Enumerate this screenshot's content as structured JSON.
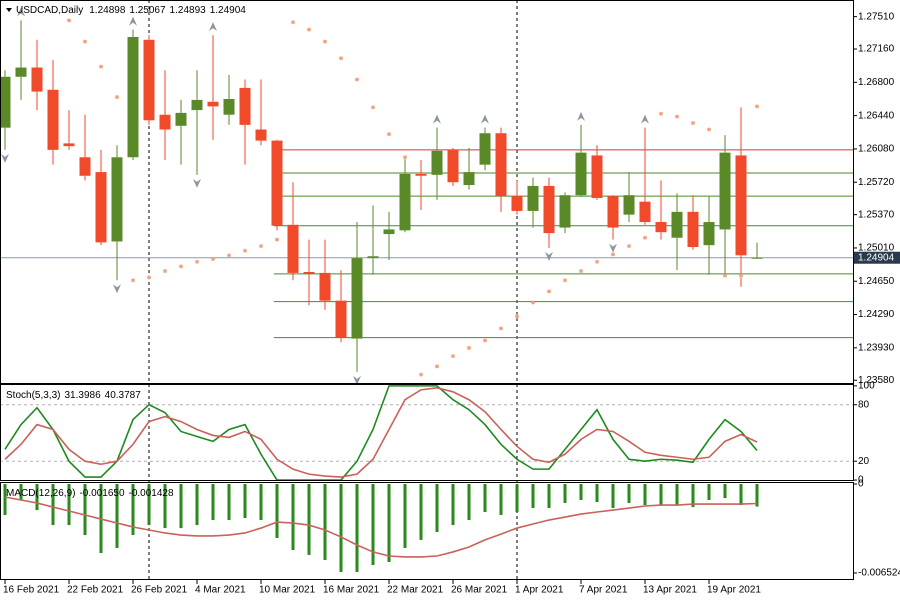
{
  "chart_data": [
    {
      "type": "candlestick",
      "title": "USDCAD,Daily",
      "categories": [
        "16 Feb 2021",
        null,
        null,
        null,
        "22 Feb 2021",
        null,
        null,
        null,
        "26 Feb 2021",
        null,
        null,
        null,
        "4 Mar 2021",
        null,
        null,
        null,
        "10 Mar 2021",
        null,
        null,
        null,
        "16 Mar 2021",
        null,
        null,
        null,
        "22 Mar 2021",
        null,
        null,
        null,
        "26 Mar 2021",
        null,
        null,
        null,
        "1 Apr 2021",
        null,
        null,
        null,
        "7 Apr 2021",
        null,
        null,
        null,
        "13 Apr 2021",
        null,
        null,
        null,
        "19 Apr 2021",
        null,
        null,
        null
      ],
      "open": [
        1.2631,
        1.2686,
        1.2696,
        1.2672,
        1.2614,
        1.2599,
        1.2583,
        1.2508,
        1.2599,
        1.2726,
        1.2645,
        1.2633,
        1.265,
        1.2659,
        1.2645,
        1.2674,
        1.2629,
        1.2617,
        1.2526,
        1.2475,
        1.2474,
        1.2444,
        1.2403,
        1.249,
        1.2516,
        1.252,
        1.2581,
        1.258,
        1.2607,
        1.2569,
        1.2591,
        1.2625,
        1.2557,
        1.2541,
        1.2568,
        1.2523,
        1.2558,
        1.2601,
        1.2557,
        1.2537,
        1.2551,
        1.2529,
        1.2512,
        1.254,
        1.2504,
        1.2521,
        1.2601,
        1.24898
      ],
      "high": [
        1.2693,
        1.2747,
        1.2726,
        1.2704,
        1.265,
        1.2645,
        1.2607,
        1.2612,
        1.2737,
        1.2731,
        1.2693,
        1.2661,
        1.2693,
        1.2731,
        1.2688,
        1.2683,
        1.2683,
        1.2618,
        1.2572,
        1.251,
        1.251,
        1.2477,
        1.2529,
        1.2547,
        1.254,
        1.2598,
        1.2596,
        1.2631,
        1.2609,
        1.2609,
        1.2631,
        1.2631,
        1.2574,
        1.2577,
        1.2577,
        1.2561,
        1.2634,
        1.2612,
        1.2558,
        1.2583,
        1.2631,
        1.2574,
        1.256,
        1.2558,
        1.2557,
        1.2623,
        1.2653,
        1.25067
      ],
      "low": [
        1.2607,
        1.2661,
        1.265,
        1.2591,
        1.2607,
        1.2574,
        1.2504,
        1.2466,
        1.2596,
        1.2634,
        1.2596,
        1.2591,
        1.258,
        1.2618,
        1.2634,
        1.2591,
        1.2612,
        1.252,
        1.2466,
        1.2439,
        1.2434,
        1.2399,
        1.2367,
        1.2472,
        1.2488,
        1.2518,
        1.2542,
        1.2553,
        1.2568,
        1.2564,
        1.2585,
        1.254,
        1.2537,
        1.2523,
        1.2501,
        1.2517,
        1.2556,
        1.2553,
        1.251,
        1.2529,
        1.2526,
        1.251,
        1.2477,
        1.2499,
        1.2472,
        1.2469,
        1.2459,
        1.24893
      ],
      "close": [
        1.2686,
        1.2696,
        1.267,
        1.2607,
        1.2611,
        1.2579,
        1.2507,
        1.2599,
        1.2729,
        1.2639,
        1.2629,
        1.2647,
        1.2661,
        1.2654,
        1.2662,
        1.2634,
        1.2617,
        1.2525,
        1.2474,
        1.2473,
        1.2444,
        1.2404,
        1.249,
        1.2492,
        1.2521,
        1.2581,
        1.2579,
        1.2606,
        1.2572,
        1.2583,
        1.2625,
        1.2557,
        1.2541,
        1.2568,
        1.2517,
        1.2558,
        1.2604,
        1.2555,
        1.2523,
        1.2558,
        1.2529,
        1.2518,
        1.254,
        1.2502,
        1.2529,
        1.2604,
        1.2493,
        1.24904
      ],
      "up_color": "#5a8a28",
      "down_color": "#f04a2a",
      "sar": {
        "color": "#f4a07a",
        "values": [
          null,
          null,
          null,
          null,
          1.2747,
          1.2724,
          1.2697,
          1.2664,
          1.2466,
          1.2469,
          1.2476,
          1.2481,
          1.2486,
          1.2489,
          1.2493,
          1.2498,
          1.2503,
          1.251,
          1.2745,
          1.2737,
          1.2724,
          1.2706,
          1.2683,
          1.2653,
          1.2624,
          1.2599,
          1.2364,
          1.2373,
          1.2384,
          1.2393,
          1.2401,
          1.2414,
          1.2427,
          1.2442,
          1.2454,
          1.2466,
          1.2476,
          1.2486,
          1.2494,
          1.2503,
          1.2512,
          1.2646,
          1.2643,
          1.2636,
          1.2629,
          1.2471,
          1.2471,
          1.2654
        ]
      },
      "fractals": {
        "color": "#8c96a0",
        "up": [
          1,
          8,
          13,
          27,
          30,
          36,
          40
        ],
        "down": [
          0,
          7,
          12,
          22,
          34,
          38
        ]
      },
      "levels": [
        {
          "value": 1.2607,
          "color": "#d03a30"
        },
        {
          "value": 1.2582,
          "color": "#4a8a2a"
        },
        {
          "value": 1.2557,
          "color": "#4a8a2a"
        },
        {
          "value": 1.2525,
          "color": "#4a8a2a"
        },
        {
          "value": 1.2473,
          "color": "#4a8a2a"
        },
        {
          "value": 1.2443,
          "color": "#4a8a2a"
        },
        {
          "value": 1.2404,
          "color": "#4a8a2a"
        }
      ],
      "period_separators": [
        9,
        32
      ],
      "ylim": [
        1.2355,
        1.2769
      ],
      "yticks": [
        {
          "value": 1.2751,
          "label": "1.27510"
        },
        {
          "value": 1.2716,
          "label": "1.27160"
        },
        {
          "value": 1.268,
          "label": "1.26800"
        },
        {
          "value": 1.2644,
          "label": "1.26440"
        },
        {
          "value": 1.2608,
          "label": "1.26080"
        },
        {
          "value": 1.2572,
          "label": "1.25720"
        },
        {
          "value": 1.2537,
          "label": "1.25370"
        },
        {
          "value": 1.2501,
          "label": "1.25010"
        },
        {
          "value": 1.2465,
          "label": "1.24650"
        },
        {
          "value": 1.2429,
          "label": "1.24290"
        },
        {
          "value": 1.2393,
          "label": "1.23930"
        },
        {
          "value": 1.2358,
          "label": "1.23580"
        }
      ]
    },
    {
      "type": "line",
      "title": "Stoch(5,3,3)",
      "series": [
        {
          "color": "#1e8a1e",
          "values": [
            32.6,
            58.9,
            76.8,
            53.7,
            20,
            3.2,
            3.2,
            20,
            64.2,
            80,
            71.6,
            51.6,
            46.3,
            41.1,
            53.7,
            58.9,
            27.4,
            0,
            0,
            0,
            0,
            0,
            20,
            53.7,
            100,
            100,
            100,
            100,
            85.3,
            74.7,
            58.9,
            37.9,
            22.1,
            11.6,
            11.6,
            32.6,
            53.7,
            74.7,
            43.2,
            22.1,
            20,
            22.1,
            21.1,
            18.9,
            43.2,
            64.2,
            51.6,
            31.3986
          ]
        },
        {
          "color": "#c8625a",
          "values": [
            22.1,
            37.9,
            58.9,
            53.7,
            32.6,
            20,
            16.8,
            20,
            37.9,
            62.1,
            67.4,
            62.1,
            53.7,
            47.4,
            45.3,
            51.6,
            43.2,
            22.1,
            11.6,
            6.3,
            4.2,
            3.2,
            6.3,
            22.1,
            53.7,
            85.3,
            95.8,
            97.9,
            93.7,
            85.3,
            72.6,
            53.7,
            35.8,
            22.1,
            18.9,
            27.4,
            43.2,
            53.7,
            51.6,
            41.1,
            29.5,
            26.3,
            24.2,
            22.1,
            24.2,
            41.1,
            48.4,
            40.3787
          ]
        }
      ],
      "levels": [
        20,
        80
      ],
      "ylim": [
        -1,
        102
      ],
      "yticks": [
        0,
        20,
        80,
        100
      ]
    },
    {
      "type": "macd",
      "title": "MACD(12,26,9)",
      "series": [
        {
          "color": "#2a8a1e",
          "current_label": "-0.001650",
          "values": [
            -0.00227,
            -0.00117,
            -0.00191,
            -0.00301,
            -0.00301,
            -0.00374,
            -0.00506,
            -0.00469,
            -0.00374,
            -0.00301,
            -0.00323,
            -0.00323,
            -0.00301,
            -0.00264,
            -0.00264,
            -0.00249,
            -0.00264,
            -0.00396,
            -0.00484,
            -0.0052,
            -0.00557,
            -0.00645,
            -0.00645,
            -0.00594,
            -0.00572,
            -0.00469,
            -0.0041,
            -0.00352,
            -0.00301,
            -0.00264,
            -0.00205,
            -0.00227,
            -0.00205,
            -0.00176,
            -0.00176,
            -0.00139,
            -0.00117,
            -0.00132,
            -0.00176,
            -0.00139,
            -0.00154,
            -0.00154,
            -0.00154,
            -0.00169,
            -0.00117,
            -0.00103,
            -0.00154,
            -0.00165
          ]
        },
        {
          "color": "#c8625a",
          "current_label": "-0.001428",
          "values": [
            -0.00095,
            -0.00117,
            -0.00139,
            -0.00169,
            -0.00198,
            -0.00227,
            -0.00257,
            -0.00286,
            -0.00315,
            -0.00337,
            -0.00359,
            -0.00374,
            -0.00381,
            -0.00381,
            -0.00374,
            -0.00359,
            -0.00323,
            -0.00279,
            -0.00286,
            -0.00301,
            -0.00337,
            -0.00388,
            -0.00447,
            -0.00498,
            -0.00528,
            -0.00535,
            -0.00535,
            -0.00528,
            -0.00498,
            -0.00462,
            -0.0041,
            -0.00367,
            -0.00323,
            -0.00293,
            -0.00264,
            -0.00242,
            -0.0022,
            -0.00205,
            -0.00191,
            -0.00176,
            -0.00161,
            -0.00154,
            -0.00154,
            -0.00147,
            -0.00147,
            -0.00147,
            -0.00147,
            -0.001428
          ]
        }
      ],
      "ylim": [
        -0.00704,
        0.00015
      ],
      "yticks": [
        0,
        -0.006524
      ]
    }
  ]
}
